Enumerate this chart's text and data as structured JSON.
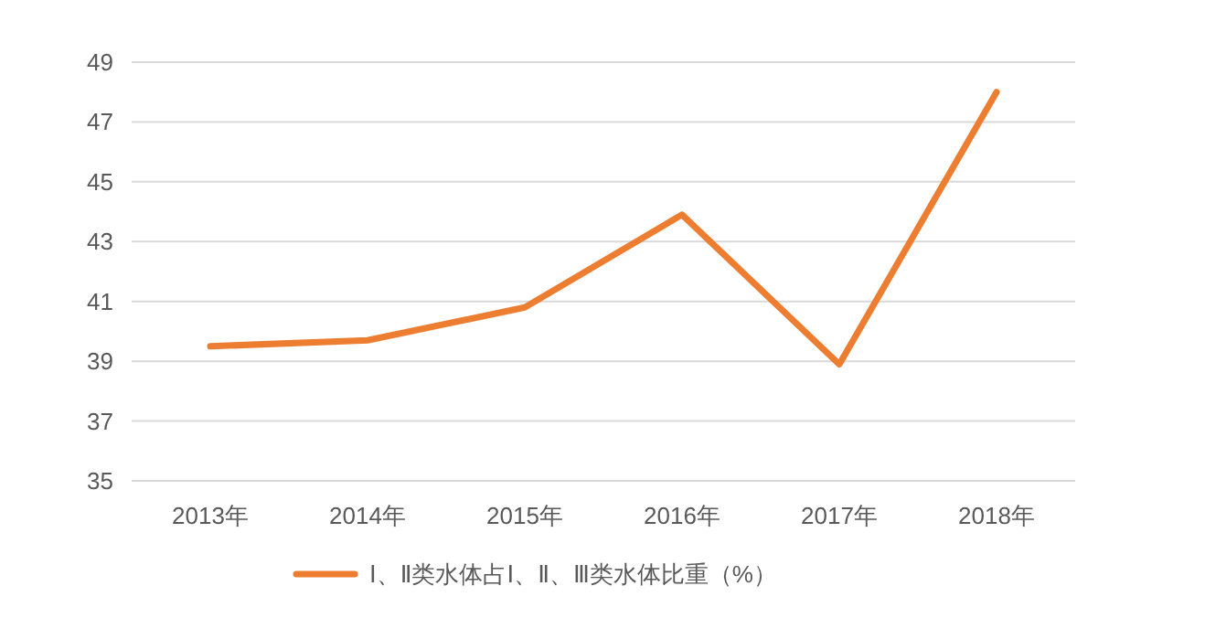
{
  "chart_data": {
    "type": "line",
    "categories": [
      "2013年",
      "2014年",
      "2015年",
      "2016年",
      "2017年",
      "2018年"
    ],
    "series": [
      {
        "name": "Ⅰ、Ⅱ类水体占Ⅰ、Ⅱ、Ⅲ类水体比重（%）",
        "color": "#ed7d31",
        "values": [
          39.5,
          39.7,
          40.8,
          43.9,
          38.9,
          48.0
        ]
      }
    ],
    "ylim": [
      35,
      49
    ],
    "yticks": [
      35,
      37,
      39,
      41,
      43,
      45,
      47,
      49
    ],
    "grid": "y",
    "legend": "bottom",
    "marker": "none",
    "line_style": "solid"
  }
}
